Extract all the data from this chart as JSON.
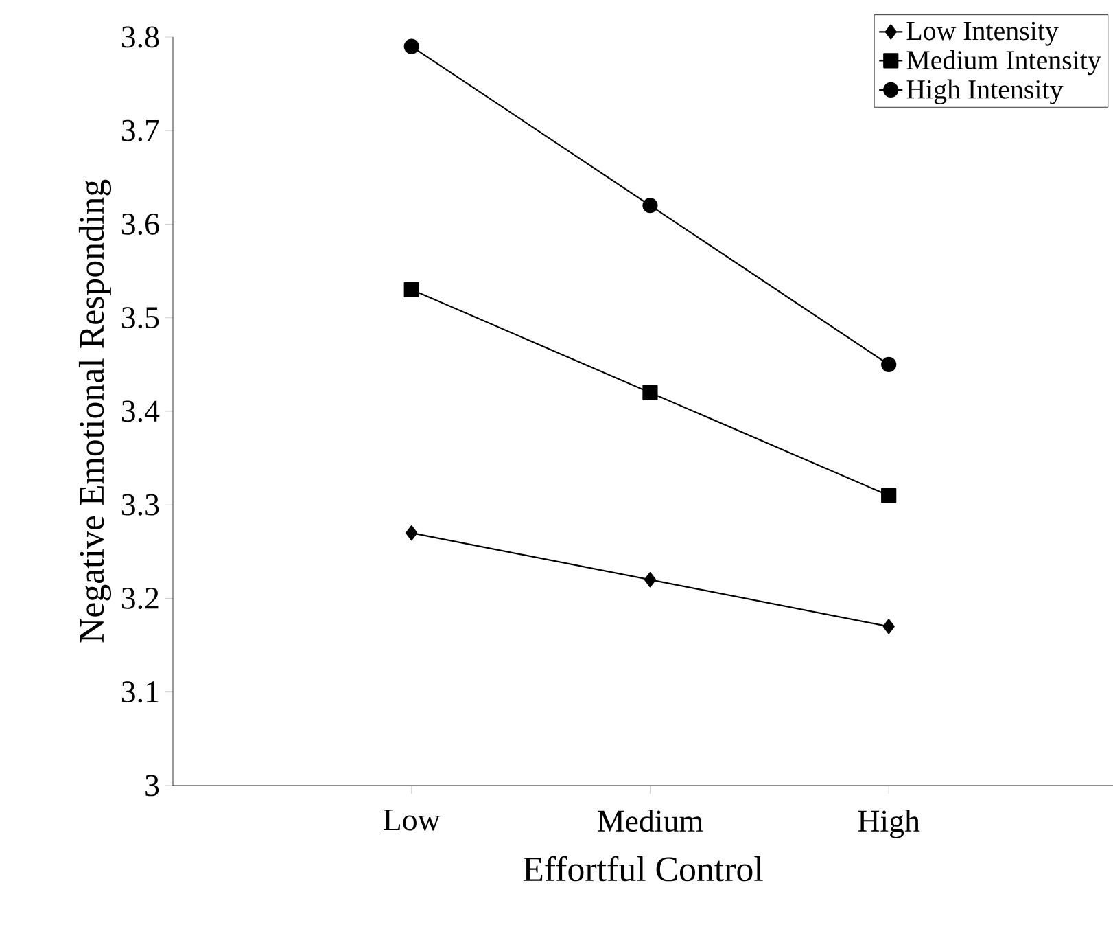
{
  "chart_data": {
    "type": "line",
    "xlabel": "Effortful Control",
    "ylabel": "Negative Emotional Responding",
    "categories": [
      "Low",
      "Medium",
      "High"
    ],
    "series": [
      {
        "name": "Low Intensity",
        "color": "#000000",
        "marker": "diamond",
        "values": [
          3.27,
          3.22,
          3.17
        ]
      },
      {
        "name": "Medium Intensity",
        "color": "#000000",
        "marker": "square",
        "values": [
          3.53,
          3.42,
          3.31
        ]
      },
      {
        "name": "High Intensity",
        "color": "#000000",
        "marker": "circle",
        "values": [
          3.79,
          3.62,
          3.45
        ]
      }
    ],
    "ylim": [
      3,
      3.8
    ],
    "yticks": [
      3,
      3.1,
      3.2,
      3.3,
      3.4,
      3.5,
      3.6,
      3.7,
      3.8
    ],
    "legend": "top right",
    "grid": false,
    "line_style": "solid"
  }
}
